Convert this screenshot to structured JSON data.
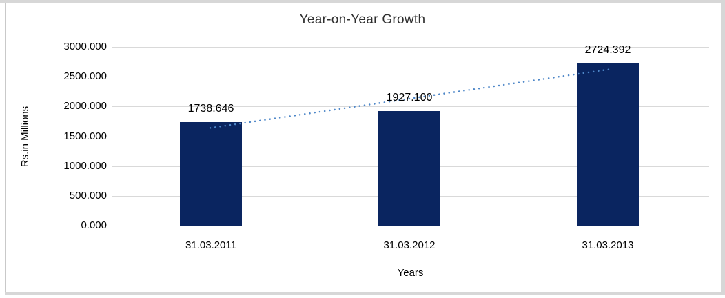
{
  "chart_data": {
    "type": "bar",
    "title": "Year-on-Year Growth",
    "xlabel": "Years",
    "ylabel": "Rs.in Millions",
    "categories": [
      "31.03.2011",
      "31.03.2012",
      "31.03.2013"
    ],
    "values": [
      1738.646,
      1927.1,
      2724.392
    ],
    "data_labels": [
      "1738.646",
      "1927.100",
      "2724.392"
    ],
    "ylim": [
      0,
      3000
    ],
    "ytick_labels": [
      "0.000",
      "500.000",
      "1000.000",
      "1500.000",
      "2000.000",
      "2500.000",
      "3000.000"
    ],
    "grid": true,
    "legend": "none",
    "trendline": {
      "type": "linear",
      "style": "dotted",
      "start_value": 1640,
      "end_value": 2625
    }
  },
  "colors": {
    "bar": "#0a2560",
    "trendline": "#4e87c8",
    "gridline": "#d9d9d9",
    "frame": "#d7d7d7",
    "background": "#ffffff",
    "title_text": "#2e2e2e",
    "axis_text": "#000000"
  }
}
